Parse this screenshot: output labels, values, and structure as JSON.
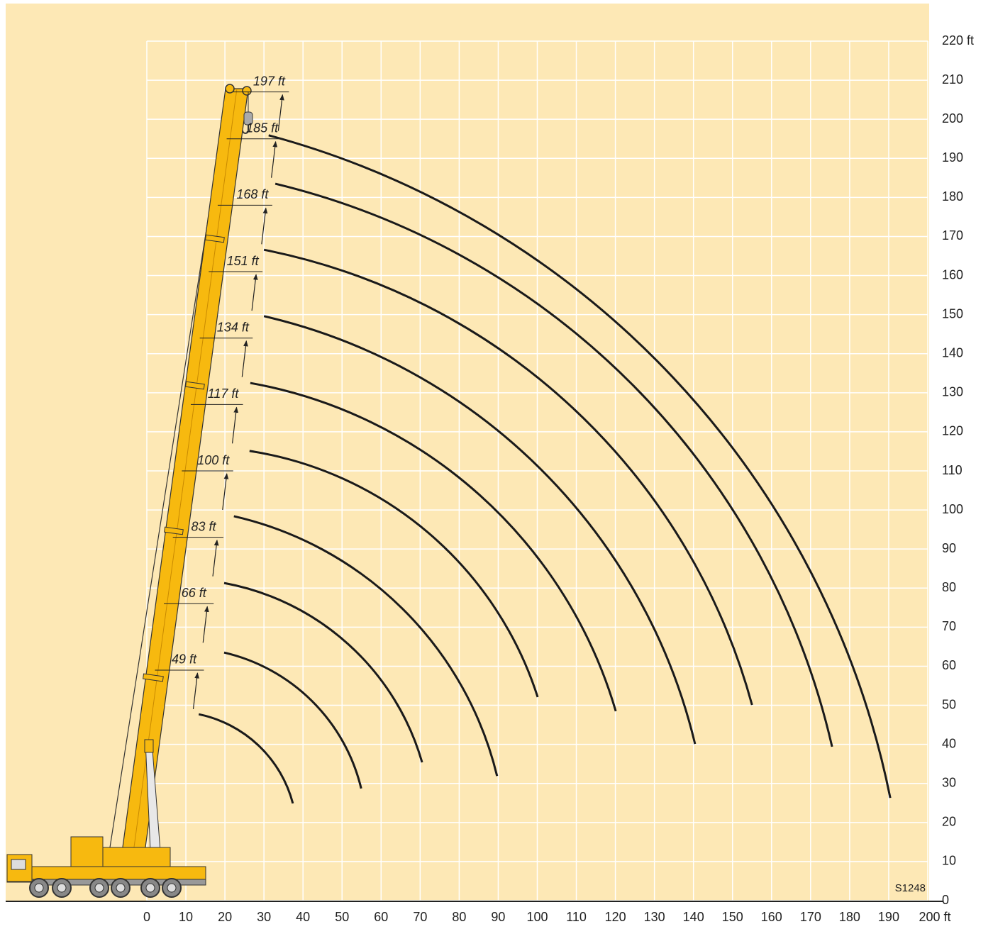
{
  "chart_data": {
    "type": "arcs",
    "xlim": [
      0,
      200
    ],
    "ylim": [
      0,
      220
    ],
    "xticks": [
      0,
      10,
      20,
      30,
      40,
      50,
      60,
      70,
      80,
      90,
      100,
      110,
      120,
      130,
      140,
      150,
      160,
      170,
      180,
      190,
      {
        "value": 200,
        "label": "200 ft"
      }
    ],
    "yticks": [
      0,
      10,
      20,
      30,
      40,
      50,
      60,
      70,
      80,
      90,
      100,
      110,
      120,
      130,
      140,
      150,
      160,
      170,
      180,
      190,
      200,
      210,
      {
        "value": 220,
        "label": "220 ft"
      }
    ],
    "grid": true,
    "color": "#1a1a1a",
    "code": "S1248",
    "curves": [
      {
        "label": "49 ft",
        "length": 49,
        "x": [
          13.3,
          37.4
        ],
        "y": [
          47.7,
          24.9
        ]
      },
      {
        "label": "66 ft",
        "length": 66,
        "x": [
          19.8,
          54.9
        ],
        "y": [
          63.5,
          28.7
        ]
      },
      {
        "label": "83 ft",
        "length": 83,
        "x": [
          19.8,
          70.5
        ],
        "y": [
          81.3,
          35.4
        ]
      },
      {
        "label": "100 ft",
        "length": 100,
        "x": [
          22.3,
          89.7
        ],
        "y": [
          98.4,
          31.9
        ]
      },
      {
        "label": "117 ft",
        "length": 117,
        "x": [
          26.3,
          100.1
        ],
        "y": [
          115.1,
          52.1
        ]
      },
      {
        "label": "134 ft",
        "length": 134,
        "x": [
          26.5,
          120.1
        ],
        "y": [
          132.5,
          48.5
        ]
      },
      {
        "label": "151 ft",
        "length": 151,
        "x": [
          30.0,
          140.4
        ],
        "y": [
          149.6,
          40.1
        ]
      },
      {
        "label": "168 ft",
        "length": 168,
        "x": [
          30.0,
          155.0
        ],
        "y": [
          166.6,
          50.1
        ]
      },
      {
        "label": "185 ft",
        "length": 185,
        "x": [
          32.9,
          175.5
        ],
        "y": [
          183.5,
          39.4
        ]
      },
      {
        "label": "197 ft",
        "length": 197,
        "x": [
          31.2,
          190.4
        ],
        "y": [
          195.9,
          26.3
        ]
      }
    ]
  }
}
